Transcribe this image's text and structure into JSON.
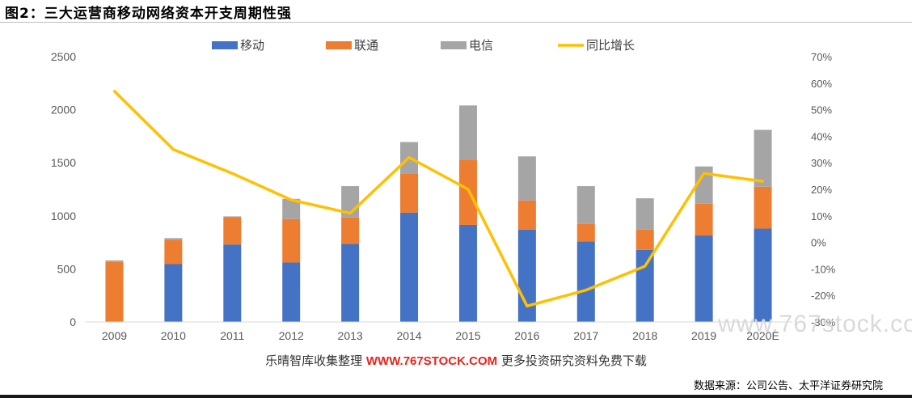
{
  "title": "图2：三大运营商移动网络资本开支周期性强",
  "source": "数据来源：公司公告、太平洋证券研究院",
  "watermark": {
    "prefix": "乐晴智库收集整理",
    "url": "WWW.767STOCK.COM",
    "suffix": "更多投资研究资料免费下载",
    "overlay": "www.767stock.co"
  },
  "colors": {
    "mobile": "#4472c4",
    "unicom": "#ed7d31",
    "telecom": "#a5a5a5",
    "growth": "#ffc000"
  },
  "chart_data": {
    "type": "bar",
    "stacked": true,
    "categories": [
      "2009",
      "2010",
      "2011",
      "2012",
      "2013",
      "2014",
      "2015",
      "2016",
      "2017",
      "2018",
      "2019",
      "2020E"
    ],
    "series": [
      {
        "name": "移动",
        "axis": "left",
        "values": [
          0,
          545,
          730,
          560,
          735,
          1030,
          915,
          870,
          760,
          680,
          815,
          880
        ]
      },
      {
        "name": "联通",
        "axis": "left",
        "values": [
          565,
          230,
          260,
          410,
          250,
          370,
          615,
          275,
          165,
          190,
          300,
          395
        ]
      },
      {
        "name": "电信",
        "axis": "left",
        "values": [
          15,
          15,
          5,
          190,
          295,
          295,
          510,
          415,
          355,
          295,
          350,
          535
        ]
      },
      {
        "name": "同比增长",
        "type": "line",
        "axis": "right",
        "values": [
          57,
          35,
          26,
          16,
          11,
          32,
          20,
          -24,
          -18,
          -9,
          26,
          23
        ]
      }
    ],
    "y_left": {
      "min": 0,
      "max": 2500,
      "ticks": [
        "0",
        "500",
        "1000",
        "1500",
        "2000",
        "2500"
      ]
    },
    "y_right": {
      "min": -30,
      "max": 70,
      "ticks": [
        "-30%",
        "-20%",
        "-10%",
        "0%",
        "10%",
        "20%",
        "30%",
        "40%",
        "50%",
        "60%",
        "70%"
      ]
    },
    "legend_position": "top",
    "grid": false
  }
}
